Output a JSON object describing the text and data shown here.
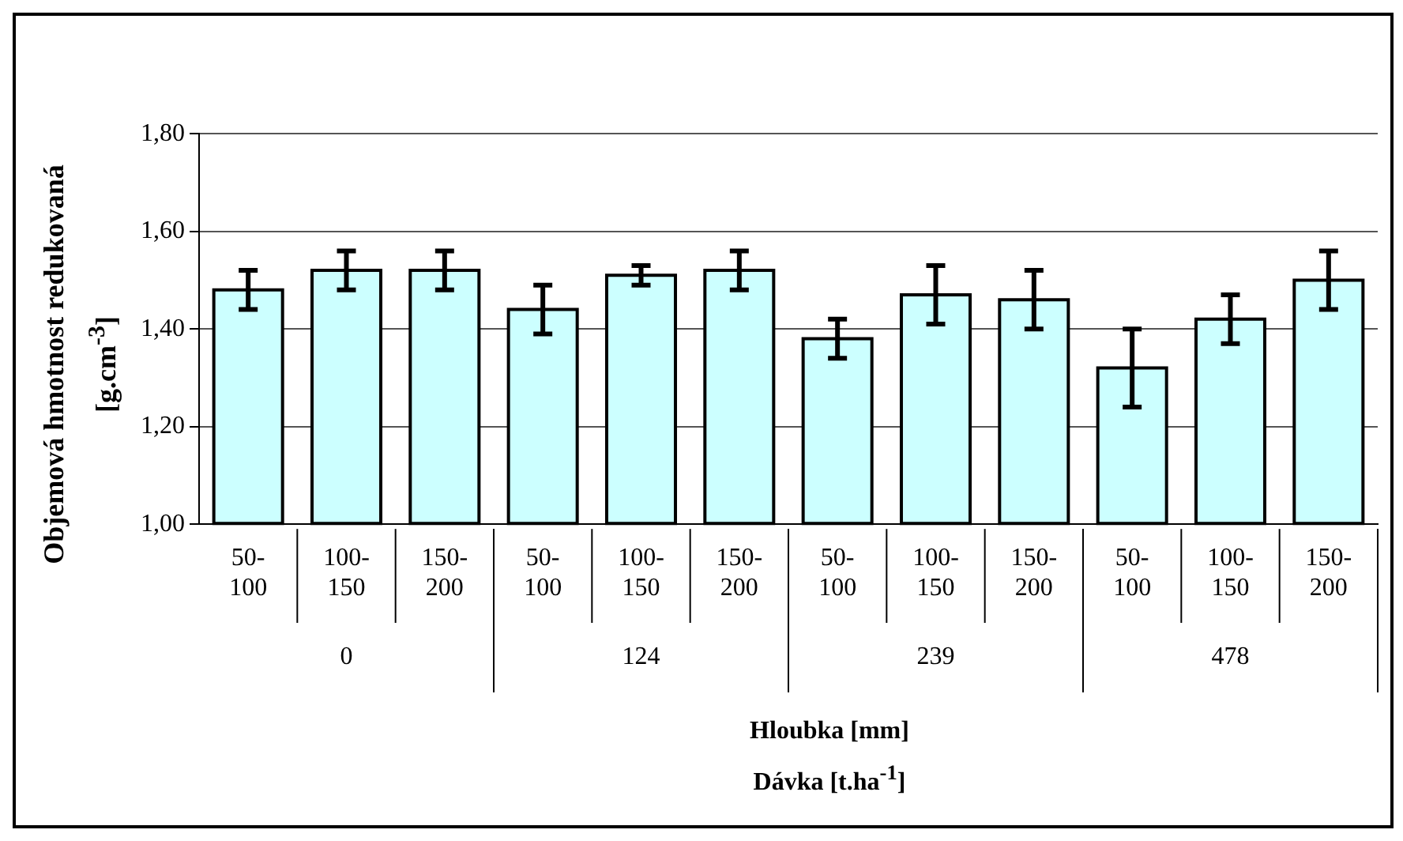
{
  "chart_data": {
    "type": "bar",
    "ylabel": "Objemová hmotnost redukovaná [g.cm$^{-3}$]",
    "xlabel": "Hloubka [mm]",
    "categories": [
      "50-100",
      "100-150",
      "150-200",
      "50-100",
      "100-150",
      "150-200",
      "50-100",
      "100-150",
      "150-200",
      "50-100",
      "100-150",
      "150-200"
    ],
    "values": [
      1.48,
      1.52,
      1.52,
      1.44,
      1.51,
      1.52,
      1.38,
      1.47,
      1.46,
      1.32,
      1.42,
      1.5
    ],
    "errors": [
      0.04,
      0.04,
      0.04,
      0.05,
      0.02,
      0.04,
      0.04,
      0.06,
      0.06,
      0.08,
      0.05,
      0.06
    ],
    "color": "#ccffff",
    "ylim": [
      1.0,
      1.8
    ],
    "yticks": [
      {
        "value": 1.0,
        "label": "1,00"
      },
      {
        "value": 1.2,
        "label": "1,20"
      },
      {
        "value": 1.4,
        "label": "1,40"
      },
      {
        "value": 1.6,
        "label": "1,60"
      },
      {
        "value": 1.8,
        "label": "1,80"
      }
    ],
    "grid": "y",
    "legend": false,
    "annotations": [
      "0",
      "124",
      "239",
      "478",
      "Dávka [t.ha$^{-1}$]"
    ]
  }
}
